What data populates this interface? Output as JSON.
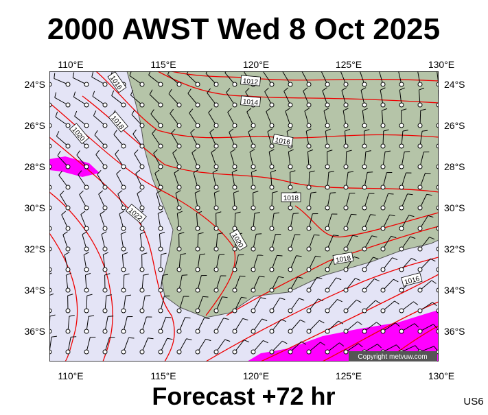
{
  "header": {
    "title": "2000 AWST Wed 8 Oct 2025"
  },
  "footer": {
    "forecast": "Forecast +72 hr",
    "code": "US6"
  },
  "map": {
    "lon_labels": [
      "110°E",
      "115°E",
      "120°E",
      "125°E",
      "130°E"
    ],
    "lat_labels": [
      "24°S",
      "26°S",
      "28°S",
      "30°S",
      "32°S",
      "34°S",
      "36°S"
    ],
    "isobar_labels": [
      "1012",
      "1014",
      "1016",
      "1018",
      "1020",
      "1018",
      "1016",
      "1022",
      "1020",
      "1016",
      "1018"
    ],
    "copyright": "Copyright metvuw.com"
  }
}
